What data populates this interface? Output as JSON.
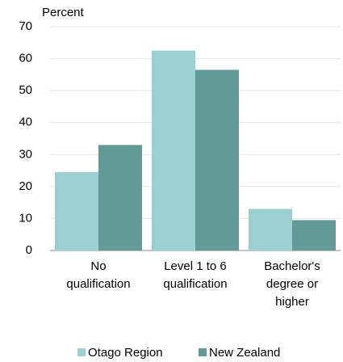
{
  "chart_data": {
    "type": "bar",
    "y_label": "Percent",
    "categories": [
      [
        "No",
        "qualification"
      ],
      [
        "Level 1 to 6",
        "qualification"
      ],
      [
        "Bachelor's",
        "degree or",
        "higher"
      ]
    ],
    "series": [
      {
        "name": "Otago Region",
        "color": "#9ccfd0",
        "values": [
          24.5,
          62.5,
          13
        ]
      },
      {
        "name": "New Zealand",
        "color": "#639a98",
        "values": [
          33,
          56.5,
          9.5
        ]
      }
    ],
    "ylim": [
      0,
      70
    ],
    "yticks": [
      0,
      10,
      20,
      30,
      40,
      50,
      60,
      70
    ],
    "grid": true,
    "legend": "bottom"
  }
}
